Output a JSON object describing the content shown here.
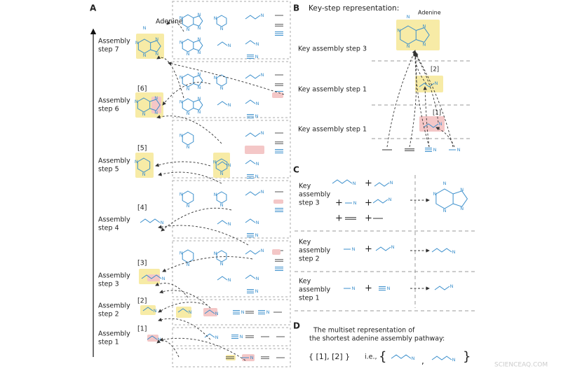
{
  "panel_a": {
    "label": "A",
    "top_label": "Adenine",
    "steps": [
      [
        "Assembly",
        "step 7"
      ],
      [
        "Assembly",
        "step 6"
      ],
      [
        "Assembly",
        "step 5"
      ],
      [
        "Assembly",
        "step 4"
      ],
      [
        "Assembly",
        "step 3"
      ],
      [
        "Assembly",
        "step 2"
      ],
      [
        "Assembly",
        "step 1"
      ]
    ],
    "brackets": [
      "[6]",
      "[5]",
      "[4]",
      "[3]",
      "[2]",
      "[1]"
    ]
  },
  "panel_b": {
    "label": "B",
    "title": "Key-step representation:",
    "molecule_label": "Adenine",
    "steps": [
      "Key assembly step 3",
      "Key assembly step 1",
      "Key assembly step 1"
    ],
    "brackets": [
      "[2]",
      "[1]"
    ]
  },
  "panel_c": {
    "label": "C",
    "rows": [
      [
        "Key",
        "assembly",
        "step 3"
      ],
      [
        "Key",
        "assembly",
        "step 2"
      ],
      [
        "Key",
        "assembly",
        "step 1"
      ]
    ],
    "plus": "+"
  },
  "panel_d": {
    "label": "D",
    "caption": [
      "The multiset representation of",
      "the shortest adenine assembly pathway:"
    ],
    "set": "{ [1], [2] }",
    "ie": "i.e.,",
    "open": "{",
    "separator": ",",
    "close": "}"
  },
  "atom_label": "N",
  "watermark": "SCIENCEAQ.COM"
}
